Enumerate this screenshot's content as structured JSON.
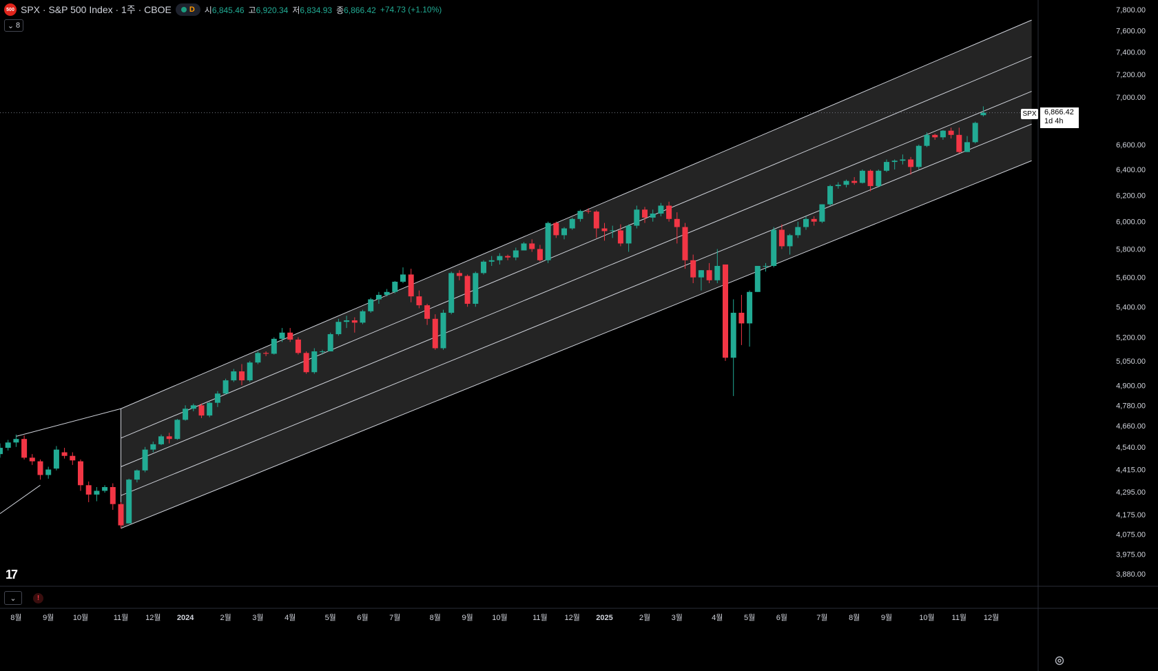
{
  "header": {
    "logo_text": "500",
    "title": "SPX · S&P 500 Index · 1주 · CBOE",
    "status_badge": "D",
    "open_label": "시",
    "open": "6,845.46",
    "high_label": "고",
    "high": "6,920.34",
    "low_label": "저",
    "low": "6,834.93",
    "close_label": "종",
    "close": "6,866.42",
    "change": "+74.73 (+1.10%)"
  },
  "indicators_toggle": {
    "count": "8"
  },
  "price_label": {
    "symbol": "SPX",
    "price": "6,866.42",
    "countdown": "1d 4h"
  },
  "colors": {
    "up": "#22ab94",
    "down": "#f23645",
    "channel_fill": "#2a2a2a",
    "channel_line": "#d1d4dc"
  },
  "icons": [
    "chevron-down-icon",
    "alert-icon",
    "settings-icon",
    "tradingview-logo"
  ],
  "chart_data": {
    "type": "candlestick",
    "timeframe": "1주",
    "scale": "log",
    "y_ticks": [
      7800,
      7600,
      7400,
      7200,
      7000,
      6600,
      6400,
      6200,
      6000,
      5800,
      5600,
      5400,
      5200,
      5050,
      4900,
      4780,
      4660,
      4540,
      4415,
      4295,
      4175,
      4075,
      3975,
      3880
    ],
    "y_tick_labels": [
      "7,800.00",
      "7,600.00",
      "7,400.00",
      "7,200.00",
      "7,000.00",
      "6,600.00",
      "6,400.00",
      "6,200.00",
      "6,000.00",
      "5,800.00",
      "5,600.00",
      "5,400.00",
      "5,200.00",
      "5,050.00",
      "4,900.00",
      "4,780.00",
      "4,660.00",
      "4,540.00",
      "4,415.00",
      "4,295.00",
      "4,175.00",
      "4,075.00",
      "3,975.00",
      "3,880.00"
    ],
    "x_ticks": [
      {
        "week": 2,
        "label": "8월"
      },
      {
        "week": 6,
        "label": "9월"
      },
      {
        "week": 10,
        "label": "10월"
      },
      {
        "week": 15,
        "label": "11월"
      },
      {
        "week": 19,
        "label": "12월"
      },
      {
        "week": 23,
        "label": "2024"
      },
      {
        "week": 28,
        "label": "2월"
      },
      {
        "week": 32,
        "label": "3월"
      },
      {
        "week": 36,
        "label": "4월"
      },
      {
        "week": 41,
        "label": "5월"
      },
      {
        "week": 45,
        "label": "6월"
      },
      {
        "week": 49,
        "label": "7월"
      },
      {
        "week": 54,
        "label": "8월"
      },
      {
        "week": 58,
        "label": "9월"
      },
      {
        "week": 62,
        "label": "10월"
      },
      {
        "week": 67,
        "label": "11월"
      },
      {
        "week": 71,
        "label": "12월"
      },
      {
        "week": 75,
        "label": "2025"
      },
      {
        "week": 80,
        "label": "2월"
      },
      {
        "week": 84,
        "label": "3월"
      },
      {
        "week": 89,
        "label": "4월"
      },
      {
        "week": 93,
        "label": "5월"
      },
      {
        "week": 97,
        "label": "6월"
      },
      {
        "week": 102,
        "label": "7월"
      },
      {
        "week": 106,
        "label": "8월"
      },
      {
        "week": 110,
        "label": "9월"
      },
      {
        "week": 115,
        "label": "10월"
      },
      {
        "week": 119,
        "label": "11월"
      },
      {
        "week": 123,
        "label": "12월"
      }
    ],
    "candles": [
      [
        4500,
        4560,
        4480,
        4535
      ],
      [
        4535,
        4580,
        4520,
        4565
      ],
      [
        4565,
        4610,
        4540,
        4585
      ],
      [
        4585,
        4605,
        4470,
        4480
      ],
      [
        4480,
        4500,
        4440,
        4460
      ],
      [
        4460,
        4470,
        4360,
        4385
      ],
      [
        4385,
        4430,
        4365,
        4415
      ],
      [
        4420,
        4545,
        4410,
        4525
      ],
      [
        4510,
        4535,
        4475,
        4490
      ],
      [
        4490,
        4510,
        4440,
        4465
      ],
      [
        4460,
        4470,
        4300,
        4330
      ],
      [
        4330,
        4350,
        4240,
        4280
      ],
      [
        4280,
        4320,
        4245,
        4300
      ],
      [
        4300,
        4330,
        4290,
        4320
      ],
      [
        4320,
        4340,
        4200,
        4230
      ],
      [
        4230,
        4240,
        4105,
        4120
      ],
      [
        4130,
        4365,
        4130,
        4360
      ],
      [
        4360,
        4415,
        4345,
        4410
      ],
      [
        4410,
        4540,
        4400,
        4525
      ],
      [
        4525,
        4570,
        4510,
        4555
      ],
      [
        4555,
        4610,
        4550,
        4600
      ],
      [
        4600,
        4620,
        4560,
        4585
      ],
      [
        4585,
        4700,
        4580,
        4695
      ],
      [
        4695,
        4780,
        4690,
        4760
      ],
      [
        4760,
        4790,
        4745,
        4780
      ],
      [
        4780,
        4790,
        4705,
        4720
      ],
      [
        4720,
        4800,
        4710,
        4795
      ],
      [
        4795,
        4865,
        4770,
        4850
      ],
      [
        4850,
        4940,
        4845,
        4930
      ],
      [
        4930,
        5000,
        4920,
        4985
      ],
      [
        4985,
        5030,
        4900,
        4930
      ],
      [
        4930,
        5050,
        4920,
        5040
      ],
      [
        5040,
        5110,
        5030,
        5100
      ],
      [
        5100,
        5110,
        5080,
        5095
      ],
      [
        5095,
        5200,
        5090,
        5190
      ],
      [
        5190,
        5260,
        5170,
        5230
      ],
      [
        5230,
        5260,
        5170,
        5185
      ],
      [
        5185,
        5200,
        5090,
        5100
      ],
      [
        5100,
        5110,
        4970,
        4980
      ],
      [
        4980,
        5130,
        4970,
        5110
      ],
      [
        5110,
        5120,
        5090,
        5110
      ],
      [
        5110,
        5230,
        5110,
        5220
      ],
      [
        5220,
        5320,
        5210,
        5300
      ],
      [
        5300,
        5340,
        5260,
        5310
      ],
      [
        5310,
        5330,
        5230,
        5295
      ],
      [
        5295,
        5380,
        5285,
        5370
      ],
      [
        5370,
        5460,
        5360,
        5450
      ],
      [
        5450,
        5500,
        5420,
        5480
      ],
      [
        5480,
        5520,
        5470,
        5500
      ],
      [
        5500,
        5575,
        5490,
        5570
      ],
      [
        5570,
        5670,
        5560,
        5620
      ],
      [
        5620,
        5660,
        5430,
        5470
      ],
      [
        5470,
        5510,
        5390,
        5410
      ],
      [
        5410,
        5420,
        5280,
        5320
      ],
      [
        5320,
        5350,
        5120,
        5130
      ],
      [
        5130,
        5380,
        5120,
        5360
      ],
      [
        5360,
        5640,
        5350,
        5630
      ],
      [
        5630,
        5650,
        5580,
        5610
      ],
      [
        5610,
        5620,
        5400,
        5420
      ],
      [
        5420,
        5640,
        5400,
        5630
      ],
      [
        5630,
        5720,
        5620,
        5710
      ],
      [
        5710,
        5750,
        5680,
        5720
      ],
      [
        5720,
        5770,
        5690,
        5750
      ],
      [
        5750,
        5760,
        5720,
        5740
      ],
      [
        5740,
        5810,
        5720,
        5790
      ],
      [
        5790,
        5850,
        5790,
        5840
      ],
      [
        5840,
        5870,
        5780,
        5800
      ],
      [
        5800,
        5830,
        5710,
        5720
      ],
      [
        5720,
        6000,
        5700,
        5990
      ],
      [
        5990,
        6000,
        5880,
        5900
      ],
      [
        5900,
        5960,
        5870,
        5950
      ],
      [
        5950,
        6030,
        5940,
        6020
      ],
      [
        6020,
        6090,
        6000,
        6080
      ],
      [
        6080,
        6100,
        6060,
        6075
      ],
      [
        6075,
        6085,
        5880,
        5950
      ],
      [
        5950,
        5990,
        5860,
        5930
      ],
      [
        5930,
        5970,
        5880,
        5935
      ],
      [
        5935,
        5980,
        5820,
        5840
      ],
      [
        5840,
        5980,
        5780,
        5970
      ],
      [
        5970,
        6120,
        5950,
        6090
      ],
      [
        6090,
        6110,
        5990,
        6030
      ],
      [
        6030,
        6090,
        6000,
        6060
      ],
      [
        6060,
        6140,
        6040,
        6120
      ],
      [
        6120,
        6150,
        6000,
        6020
      ],
      [
        6020,
        6070,
        5840,
        5960
      ],
      [
        5960,
        5990,
        5660,
        5720
      ],
      [
        5720,
        5760,
        5560,
        5600
      ],
      [
        5600,
        5650,
        5510,
        5650
      ],
      [
        5650,
        5700,
        5560,
        5580
      ],
      [
        5580,
        5800,
        5560,
        5680
      ],
      [
        5690,
        5690,
        5050,
        5070
      ],
      [
        5070,
        5450,
        4835,
        5360
      ],
      [
        5360,
        5480,
        5150,
        5290
      ],
      [
        5290,
        5510,
        5140,
        5500
      ],
      [
        5500,
        5680,
        5500,
        5680
      ],
      [
        5680,
        5700,
        5640,
        5680
      ],
      [
        5680,
        5960,
        5670,
        5940
      ],
      [
        5940,
        5980,
        5800,
        5820
      ],
      [
        5820,
        5910,
        5760,
        5900
      ],
      [
        5900,
        6000,
        5880,
        5960
      ],
      [
        5960,
        6040,
        5940,
        6020
      ],
      [
        6020,
        6040,
        5970,
        6000
      ],
      [
        6000,
        6130,
        5990,
        6130
      ],
      [
        6130,
        6280,
        6120,
        6270
      ],
      [
        6270,
        6300,
        6250,
        6280
      ],
      [
        6280,
        6320,
        6260,
        6310
      ],
      [
        6310,
        6340,
        6280,
        6295
      ],
      [
        6295,
        6400,
        6290,
        6390
      ],
      [
        6390,
        6400,
        6230,
        6270
      ],
      [
        6270,
        6400,
        6260,
        6390
      ],
      [
        6390,
        6480,
        6380,
        6460
      ],
      [
        6460,
        6480,
        6400,
        6470
      ],
      [
        6470,
        6520,
        6440,
        6480
      ],
      [
        6480,
        6500,
        6360,
        6420
      ],
      [
        6420,
        6600,
        6400,
        6590
      ],
      [
        6590,
        6700,
        6580,
        6680
      ],
      [
        6680,
        6690,
        6640,
        6660
      ],
      [
        6660,
        6720,
        6640,
        6715
      ],
      [
        6715,
        6740,
        6650,
        6680
      ],
      [
        6680,
        6740,
        6530,
        6540
      ],
      [
        6540,
        6670,
        6540,
        6620
      ],
      [
        6620,
        6790,
        6610,
        6780
      ],
      [
        6845,
        6920,
        6834,
        6866
      ]
    ],
    "channel": {
      "description": "parallel channel with 5 lines",
      "anchor_week": 15,
      "lines_at_anchor": [
        4760,
        4590,
        4430,
        4275,
        4105
      ],
      "lines_at_end": [
        7700,
        7360,
        7050,
        6770,
        6470
      ],
      "end_week": 128
    }
  }
}
